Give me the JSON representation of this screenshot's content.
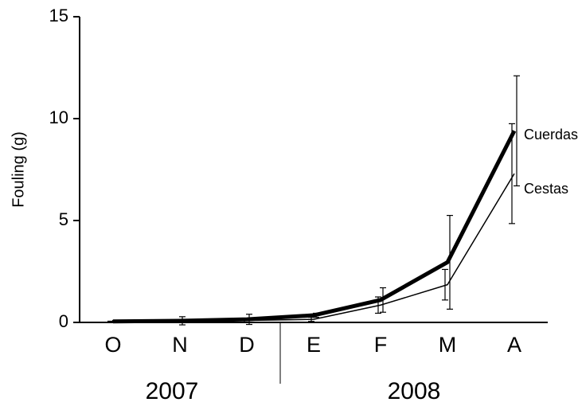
{
  "chart_data": {
    "type": "line",
    "y_label": "Fouling (g)",
    "categories": [
      "O",
      "N",
      "D",
      "E",
      "F",
      "M",
      "A"
    ],
    "x_groups": [
      "2007",
      "2008"
    ],
    "ylim": [
      0,
      15
    ],
    "yticks": [
      0,
      5,
      10,
      15
    ],
    "series": [
      {
        "name": "Cuerdas",
        "color": "#000000",
        "width": 5,
        "values": [
          0.05,
          0.08,
          0.15,
          0.35,
          1.1,
          2.95,
          9.4
        ],
        "errors": [
          0.05,
          0.2,
          0.25,
          0.1,
          0.6,
          2.3,
          2.7
        ]
      },
      {
        "name": "Cestas",
        "color": "#000000",
        "width": 1.5,
        "values": [
          0.03,
          0.05,
          0.1,
          0.15,
          0.85,
          1.85,
          7.3
        ],
        "errors": [
          0.03,
          0.05,
          0.1,
          0.1,
          0.4,
          0.75,
          2.45
        ]
      }
    ]
  }
}
